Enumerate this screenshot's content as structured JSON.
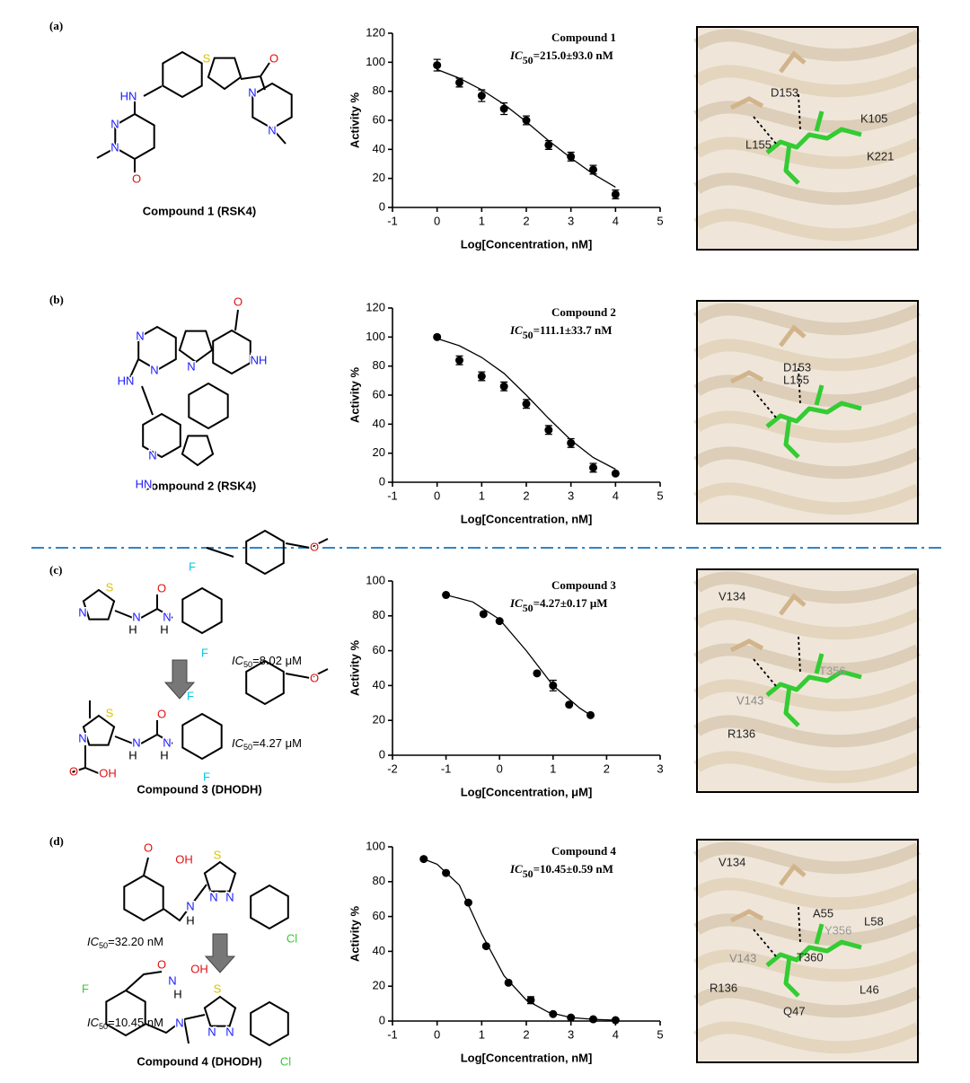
{
  "chart_data": [
    {
      "type": "scatter",
      "title": "Compound 1",
      "annotation": {
        "prefix": "IC",
        "sub": "50",
        "rest": "=215.0±93.0 nM"
      },
      "xlabel": "Log[Concentration, nM]",
      "ylabel": "Activity %",
      "xlim": [
        -1,
        5
      ],
      "xticks": [
        -1,
        0,
        1,
        2,
        3,
        4,
        5
      ],
      "ylim": [
        0,
        120
      ],
      "yticks": [
        0,
        20,
        40,
        60,
        80,
        100,
        120
      ],
      "color": "#000000",
      "points": {
        "x": [
          0,
          0.5,
          1,
          1.5,
          2,
          2.5,
          3,
          3.5,
          4
        ],
        "values": [
          98,
          86,
          77,
          68,
          60,
          43,
          35,
          26,
          9
        ],
        "errors": [
          4,
          3,
          4,
          4,
          3,
          3,
          3,
          3,
          3
        ]
      },
      "fit": {
        "x": [
          0,
          0.5,
          1,
          1.5,
          2,
          2.5,
          3,
          3.5,
          4
        ],
        "values": [
          95,
          89,
          81,
          71,
          59,
          46,
          34,
          23,
          14
        ]
      }
    },
    {
      "type": "scatter",
      "title": "Compound 2",
      "annotation": {
        "prefix": "IC",
        "sub": "50",
        "rest": "=111.1±33.7 nM"
      },
      "xlabel": "Log[Concentration, nM]",
      "ylabel": "Activity %",
      "xlim": [
        -1,
        5
      ],
      "xticks": [
        -1,
        0,
        1,
        2,
        3,
        4,
        5
      ],
      "ylim": [
        0,
        120
      ],
      "yticks": [
        0,
        20,
        40,
        60,
        80,
        100,
        120
      ],
      "color": "#000000",
      "points": {
        "x": [
          0,
          0.5,
          1,
          1.5,
          2,
          2.5,
          3,
          3.5,
          4
        ],
        "values": [
          100,
          84,
          73,
          66,
          54,
          36,
          27,
          10,
          6
        ],
        "errors": [
          0,
          3,
          3,
          3,
          3,
          3,
          3,
          3,
          0
        ]
      },
      "fit": {
        "x": [
          0,
          0.5,
          1,
          1.5,
          2,
          2.5,
          3,
          3.5,
          4
        ],
        "values": [
          99,
          94,
          86,
          75,
          60,
          44,
          29,
          17,
          9
        ]
      }
    },
    {
      "type": "scatter",
      "title": "Compound 3",
      "annotation": {
        "prefix": "IC",
        "sub": "50",
        "rest": "=4.27±0.17 μM"
      },
      "xlabel": "Log[Concentration, μM]",
      "ylabel": "Activity %",
      "xlim": [
        -2,
        3
      ],
      "xticks": [
        -2,
        -1,
        0,
        1,
        2,
        3
      ],
      "ylim": [
        0,
        100
      ],
      "yticks": [
        0,
        20,
        40,
        60,
        80,
        100
      ],
      "color": "#000000",
      "points": {
        "x": [
          -1,
          -0.3,
          0,
          0.7,
          1,
          1.3,
          1.7
        ],
        "values": [
          92,
          81,
          77,
          47,
          40,
          29,
          23
        ],
        "errors": [
          0,
          0,
          0,
          0,
          3,
          0,
          0
        ]
      },
      "fit": {
        "x": [
          -1,
          -0.5,
          0,
          0.5,
          1,
          1.5,
          1.7
        ],
        "values": [
          92,
          88,
          78,
          60,
          40,
          27,
          23
        ]
      }
    },
    {
      "type": "scatter",
      "title": "Compound 4",
      "annotation": {
        "prefix": "IC",
        "sub": "50",
        "rest": "=10.45±0.59 nM"
      },
      "xlabel": "Log[Concentration, nM]",
      "ylabel": "Activity %",
      "xlim": [
        -1,
        5
      ],
      "xticks": [
        -1,
        0,
        1,
        2,
        3,
        4,
        5
      ],
      "ylim": [
        0,
        100
      ],
      "yticks": [
        0,
        20,
        40,
        60,
        80,
        100
      ],
      "color": "#000000",
      "points": {
        "x": [
          -0.3,
          0.2,
          0.7,
          1.1,
          1.6,
          2.1,
          2.6,
          3.0,
          3.5,
          4.0
        ],
        "values": [
          93,
          85,
          68,
          43,
          22,
          12,
          4,
          2,
          1,
          0.5
        ],
        "errors": [
          0,
          0,
          0,
          0,
          0,
          2,
          0,
          0,
          0,
          0
        ]
      },
      "fit": {
        "x": [
          -0.3,
          0,
          0.5,
          1,
          1.5,
          2,
          2.5,
          3,
          3.5,
          4
        ],
        "values": [
          93,
          90,
          78,
          50,
          26,
          12,
          5,
          2,
          1,
          0.5
        ]
      }
    }
  ],
  "panels": [
    {
      "label": "(a)",
      "compound": "Compound 1 (RSK4)",
      "atoms": [
        "S",
        "O",
        "HN",
        "N",
        "N",
        "O",
        "N",
        "N"
      ],
      "residues": [
        "D153",
        "K105",
        "L155",
        "K221"
      ]
    },
    {
      "label": "(b)",
      "compound": "Compound 2 (RSK4)",
      "atoms": [
        "O",
        "N",
        "N",
        "N",
        "NH",
        "HN",
        "N",
        "HN"
      ],
      "residues": [
        "D153",
        "L155"
      ]
    },
    {
      "label": "(c)",
      "compound": "Compound 3 (DHODH)",
      "atoms": [
        "S",
        "N",
        "O",
        "N",
        "N",
        "H",
        "H",
        "F",
        "F",
        "O",
        "S",
        "N",
        "O",
        "OH",
        "O",
        "N",
        "N",
        "H",
        "H",
        "F",
        "F",
        "O"
      ],
      "ic": [
        {
          "prefix": "IC",
          "sub": "50",
          "rest": "=8.02 μM"
        },
        {
          "prefix": "IC",
          "sub": "50",
          "rest": "=4.27 μM"
        }
      ],
      "residues": [
        "V134",
        "T356",
        "V143",
        "R136"
      ]
    },
    {
      "label": "(d)",
      "compound": "Compound 4 (DHODH)",
      "atoms": [
        "O",
        "OH",
        "S",
        "N",
        "N",
        "H",
        "N",
        "Cl",
        "O",
        "N",
        "H",
        "OH",
        "F",
        "S",
        "N",
        "N",
        "N",
        "Cl"
      ],
      "ic": [
        {
          "prefix": "IC",
          "sub": "50",
          "rest": "=32.20 nM"
        },
        {
          "prefix": "IC",
          "sub": "50",
          "rest": "=10.45 nM"
        }
      ],
      "residues": [
        "V134",
        "A55",
        "L58",
        "Y356",
        "V143",
        "T360",
        "R136",
        "L46",
        "Q47"
      ]
    }
  ]
}
